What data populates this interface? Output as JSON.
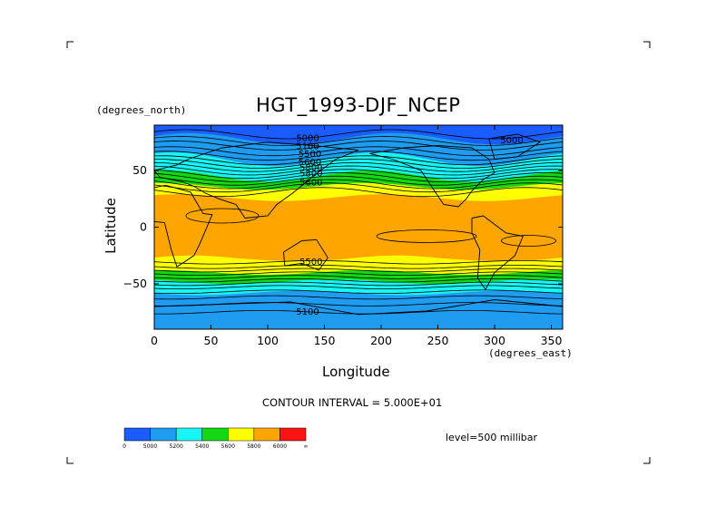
{
  "chart_data": {
    "type": "heatmap",
    "title": "HGT_1993-DJF_NCEP",
    "x_units": "(degrees_east)",
    "y_units": "(degrees_north)",
    "xlabel": "Longitude",
    "ylabel": "Latitude",
    "xlim": [
      0,
      360
    ],
    "ylim": [
      -90,
      90
    ],
    "x_ticks": [
      0,
      50,
      100,
      150,
      200,
      250,
      300,
      350
    ],
    "y_ticks": [
      50,
      0,
      -50
    ],
    "y_tick_labels": [
      "50",
      "0",
      "−50"
    ],
    "contour_interval": "CONTOUR INTERVAL = 5.000E+01",
    "level": "level=500 millibar",
    "contour_labels": [
      "5000",
      "5100",
      "5500",
      "5600",
      "5800",
      "5800",
      "5600",
      "5500",
      "5100"
    ],
    "colorbar": {
      "tick_labels": [
        "0",
        "5000",
        "5200",
        "5400",
        "5600",
        "5800",
        "6000",
        "∞"
      ],
      "colors": [
        "#1a5cff",
        "#1f9cf0",
        "#19f4f4",
        "#14d814",
        "#ffff00",
        "#ffa500",
        "#ff1414"
      ]
    },
    "bands_by_latitude": [
      {
        "lat_range": [
          55,
          90
        ],
        "value_range": [
          5000,
          5200
        ]
      },
      {
        "lat_range": [
          40,
          55
        ],
        "value_range": [
          5200,
          5400
        ]
      },
      {
        "lat_range": [
          30,
          40
        ],
        "value_range": [
          5600,
          5800
        ]
      },
      {
        "lat_range": [
          -30,
          30
        ],
        "value_range": [
          5800,
          6000
        ]
      },
      {
        "lat_range": [
          -45,
          -30
        ],
        "value_range": [
          5600,
          5800
        ]
      },
      {
        "lat_range": [
          -55,
          -45
        ],
        "value_range": [
          5400,
          5600
        ]
      },
      {
        "lat_range": [
          -90,
          -55
        ],
        "value_range": [
          5000,
          5200
        ]
      }
    ]
  }
}
